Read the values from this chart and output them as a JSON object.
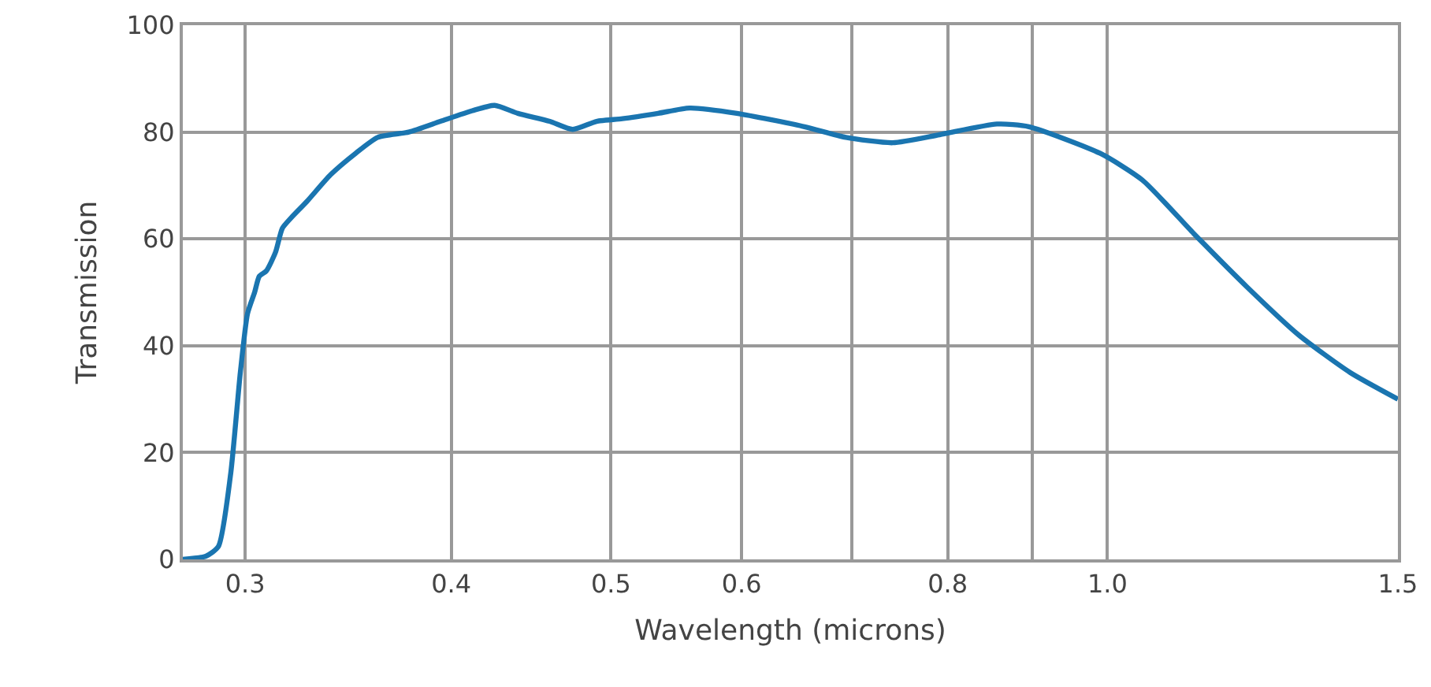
{
  "chart_data": {
    "type": "line",
    "xlabel": "Wavelength (microns)",
    "ylabel": "Transmission",
    "log": "x",
    "grid": true,
    "marker": "none",
    "line_style": "solid",
    "xlim": [
      0.275,
      1.5
    ],
    "ylim": [
      0,
      100
    ],
    "xticks": [
      0.3,
      0.4,
      0.5,
      0.6,
      {
        "value": 0.7,
        "label": null
      },
      0.8,
      {
        "value": 0.9,
        "label": null
      },
      {
        "value": 1.0,
        "label": "1.0"
      },
      1.5
    ],
    "yticks": [
      0,
      20,
      40,
      60,
      80,
      100
    ],
    "series": [
      {
        "color": "#1a75b0",
        "x": [
          0.275,
          0.284,
          0.289,
          0.294,
          0.298,
          0.301,
          0.304,
          0.306,
          0.309,
          0.313,
          0.316,
          0.32,
          0.327,
          0.338,
          0.35,
          0.361,
          0.377,
          0.394,
          0.412,
          0.425,
          0.439,
          0.459,
          0.474,
          0.49,
          0.508,
          0.534,
          0.558,
          0.596,
          0.655,
          0.694,
          0.741,
          0.791,
          0.857,
          0.896,
          0.99,
          1.05,
          1.128,
          1.215,
          1.306,
          1.403,
          1.5
        ],
        "values": [
          0,
          0.6,
          2.4,
          16,
          35,
          46,
          50,
          53,
          54,
          57.5,
          62,
          64,
          67,
          72,
          76,
          79,
          80,
          82,
          84,
          85,
          83.5,
          82,
          80.5,
          82,
          82.5,
          83.5,
          84.5,
          83.5,
          81,
          79,
          78,
          79.5,
          81.5,
          81,
          76,
          71,
          61,
          51,
          42,
          35,
          30
        ]
      }
    ]
  }
}
